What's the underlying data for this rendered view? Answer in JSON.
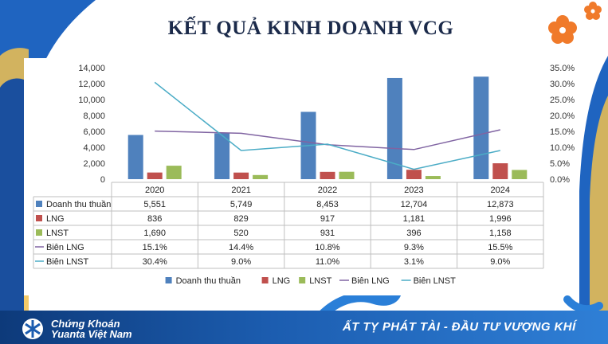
{
  "slide": {
    "title": "KẾT QUẢ KINH DOANH VCG",
    "brand": {
      "line1": "Chứng Khoán",
      "line2": "Yuanta Việt Nam"
    },
    "banner": "ẤT TỴ PHÁT TÀI - ĐẦU TƯ VƯỢNG KHÍ"
  },
  "chart_data": {
    "type": "bar",
    "categories": [
      "2020",
      "2021",
      "2022",
      "2023",
      "2024"
    ],
    "left_axis": {
      "min": 0,
      "max": 14000,
      "step": 2000,
      "tick_labels": [
        "0",
        "2,000",
        "4,000",
        "6,000",
        "8,000",
        "10,000",
        "12,000",
        "14,000"
      ]
    },
    "right_axis": {
      "min": 0,
      "max": 0.35,
      "step": 0.05,
      "tick_labels": [
        "0.0%",
        "5.0%",
        "10.0%",
        "15.0%",
        "20.0%",
        "25.0%",
        "30.0%",
        "35.0%"
      ]
    },
    "series": [
      {
        "name": "Doanh thu thuần",
        "kind": "bar",
        "axis": "left",
        "color": "#4f81bd",
        "values": [
          5551,
          5749,
          8453,
          12704,
          12873
        ],
        "labels": [
          "5,551",
          "5,749",
          "8,453",
          "12,704",
          "12,873"
        ]
      },
      {
        "name": "LNG",
        "kind": "bar",
        "axis": "left",
        "color": "#c0504d",
        "values": [
          836,
          829,
          917,
          1181,
          1996
        ],
        "labels": [
          "836",
          "829",
          "917",
          "1,181",
          "1,996"
        ]
      },
      {
        "name": "LNST",
        "kind": "bar",
        "axis": "left",
        "color": "#9bbb59",
        "values": [
          1690,
          520,
          931,
          396,
          1158
        ],
        "labels": [
          "1,690",
          "520",
          "931",
          "396",
          "1,158"
        ]
      },
      {
        "name": "Biên LNG",
        "kind": "line",
        "axis": "right",
        "color": "#8064a2",
        "values": [
          0.151,
          0.144,
          0.108,
          0.093,
          0.155
        ],
        "labels": [
          "15.1%",
          "14.4%",
          "10.8%",
          "9.3%",
          "15.5%"
        ]
      },
      {
        "name": "Biên LNST",
        "kind": "line",
        "axis": "right",
        "color": "#4bacc6",
        "values": [
          0.304,
          0.09,
          0.11,
          0.031,
          0.09
        ],
        "labels": [
          "30.4%",
          "9.0%",
          "11.0%",
          "3.1%",
          "9.0%"
        ]
      }
    ],
    "data_table": true,
    "legend_position": "bottom",
    "grid": false
  }
}
